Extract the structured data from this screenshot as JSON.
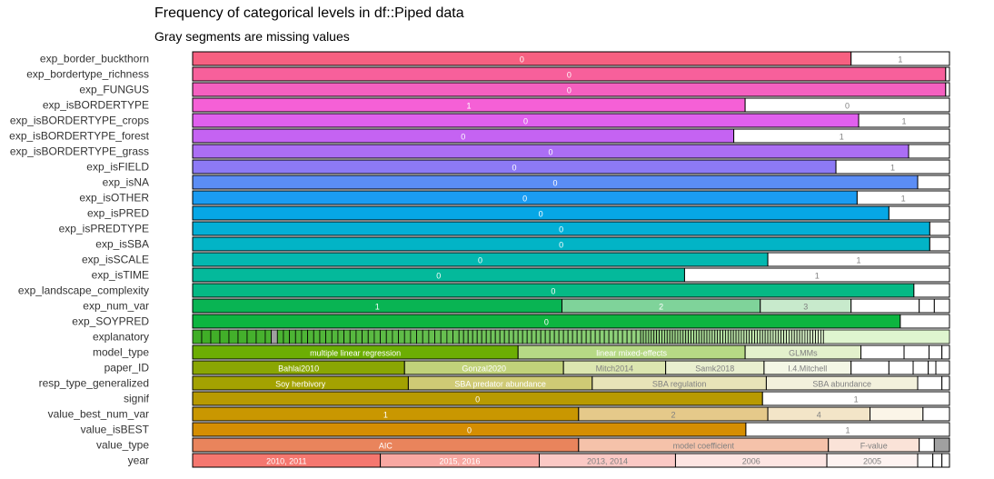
{
  "chart_data": {
    "type": "bar",
    "orientation": "horizontal-stacked-100",
    "title": "Frequency of categorical levels in df::Piped data",
    "subtitle": "Gray segments are missing values",
    "missing_color": "#a0a0a0",
    "rows": [
      {
        "name": "exp_border_buckthorn",
        "color": "#f76081",
        "segments": [
          {
            "label": "0",
            "value": 0.87
          },
          {
            "label": "1",
            "value": 0.13
          }
        ]
      },
      {
        "name": "exp_bordertype_richness",
        "color": "#f7609b",
        "segments": [
          {
            "label": "0",
            "value": 0.995
          },
          {
            "label": "",
            "value": 0.005
          }
        ]
      },
      {
        "name": "exp_FUNGUS",
        "color": "#f560c0",
        "segments": [
          {
            "label": "0",
            "value": 0.995
          },
          {
            "label": "",
            "value": 0.005
          }
        ]
      },
      {
        "name": "exp_isBORDERTYPE",
        "color": "#f560d6",
        "segments": [
          {
            "label": "1",
            "value": 0.73
          },
          {
            "label": "0",
            "value": 0.27
          }
        ]
      },
      {
        "name": "exp_isBORDERTYPE_crops",
        "color": "#e060ee",
        "segments": [
          {
            "label": "0",
            "value": 0.88
          },
          {
            "label": "1",
            "value": 0.12
          }
        ]
      },
      {
        "name": "exp_isBORDERTYPE_forest",
        "color": "#c563f2",
        "segments": [
          {
            "label": "0",
            "value": 0.715
          },
          {
            "label": "1",
            "value": 0.285
          }
        ]
      },
      {
        "name": "exp_isBORDERTYPE_grass",
        "color": "#ab6ef4",
        "segments": [
          {
            "label": "0",
            "value": 0.946
          },
          {
            "label": "",
            "value": 0.054
          }
        ]
      },
      {
        "name": "exp_isFIELD",
        "color": "#8d7af5",
        "segments": [
          {
            "label": "0",
            "value": 0.85
          },
          {
            "label": "1",
            "value": 0.15
          }
        ]
      },
      {
        "name": "exp_isNA",
        "color": "#5b8df5",
        "segments": [
          {
            "label": "0",
            "value": 0.958
          },
          {
            "label": "",
            "value": 0.042
          }
        ]
      },
      {
        "name": "exp_isOTHER",
        "color": "#1a9cf2",
        "segments": [
          {
            "label": "0",
            "value": 0.878
          },
          {
            "label": "1",
            "value": 0.122
          }
        ]
      },
      {
        "name": "exp_isPRED",
        "color": "#06a7e6",
        "segments": [
          {
            "label": "0",
            "value": 0.92
          },
          {
            "label": "",
            "value": 0.08
          }
        ]
      },
      {
        "name": "exp_isPREDTYPE",
        "color": "#03afd6",
        "segments": [
          {
            "label": "0",
            "value": 0.974
          },
          {
            "label": "",
            "value": 0.026
          }
        ]
      },
      {
        "name": "exp_isSBA",
        "color": "#02b4c6",
        "segments": [
          {
            "label": "0",
            "value": 0.974
          },
          {
            "label": "",
            "value": 0.026
          }
        ]
      },
      {
        "name": "exp_isSCALE",
        "color": "#03b8b0",
        "segments": [
          {
            "label": "0",
            "value": 0.76
          },
          {
            "label": "1",
            "value": 0.24
          }
        ]
      },
      {
        "name": "exp_isTIME",
        "color": "#04b99b",
        "segments": [
          {
            "label": "0",
            "value": 0.65
          },
          {
            "label": "1",
            "value": 0.35
          }
        ]
      },
      {
        "name": "exp_landscape_complexity",
        "color": "#05b985",
        "segments": [
          {
            "label": "0",
            "value": 0.953
          },
          {
            "label": "",
            "value": 0.047
          }
        ]
      },
      {
        "name": "exp_num_var",
        "colors": [
          "#09b453",
          "#7fd39a",
          "#c8eacc",
          "#ffffff",
          "#ffffff"
        ],
        "segments": [
          {
            "label": "1",
            "value": 0.488
          },
          {
            "label": "2",
            "value": 0.262
          },
          {
            "label": "3",
            "value": 0.12
          },
          {
            "label": "",
            "value": 0.09
          },
          {
            "label": "",
            "value": 0.02
          },
          {
            "label": "",
            "value": 0.02
          }
        ]
      },
      {
        "name": "exp_SOYPRED",
        "color": "#0db540",
        "segments": [
          {
            "label": "0",
            "value": 0.935
          },
          {
            "label": "",
            "value": 0.065
          }
        ]
      },
      {
        "name": "explanatory",
        "color": "#3fae26",
        "pattern": "many-small-levels",
        "segments": []
      },
      {
        "name": "model_type",
        "colors": [
          "#6cae03",
          "#b6d985",
          "#e3f1cc",
          "#ffffff",
          "#ffffff",
          "#ffffff"
        ],
        "segments": [
          {
            "label": "multiple linear regression",
            "value": 0.43
          },
          {
            "label": "linear mixed-effects",
            "value": 0.3
          },
          {
            "label": "GLMMs",
            "value": 0.153
          },
          {
            "label": "",
            "value": 0.057
          },
          {
            "label": "",
            "value": 0.033
          },
          {
            "label": "",
            "value": 0.017
          },
          {
            "label": "",
            "value": 0.01
          }
        ]
      },
      {
        "name": "paper_ID",
        "colors": [
          "#8aa603",
          "#c1d27a",
          "#dce6b0",
          "#e9efcf",
          "#f4f7e6",
          "#ffffff"
        ],
        "segments": [
          {
            "label": "Bahlai2010",
            "value": 0.28
          },
          {
            "label": "Gonzal2020",
            "value": 0.21
          },
          {
            "label": "Mitch2014",
            "value": 0.135
          },
          {
            "label": "Samk2018",
            "value": 0.13
          },
          {
            "label": "I.4.Mitchell",
            "value": 0.115
          },
          {
            "label": "",
            "value": 0.05
          },
          {
            "label": "",
            "value": 0.032
          },
          {
            "label": "",
            "value": 0.02
          },
          {
            "label": "",
            "value": 0.01
          },
          {
            "label": "",
            "value": 0.018
          }
        ]
      },
      {
        "name": "resp_type_generalized",
        "colors": [
          "#a3a201",
          "#cfca75",
          "#e8e4b8",
          "#f3f1dc",
          "#ffffff"
        ],
        "segments": [
          {
            "label": "Soy herbivory",
            "value": 0.285
          },
          {
            "label": "SBA predator abundance",
            "value": 0.243
          },
          {
            "label": "SBA regulation",
            "value": 0.23
          },
          {
            "label": "SBA abundance",
            "value": 0.2
          },
          {
            "label": "",
            "value": 0.032
          },
          {
            "label": "",
            "value": 0.01
          }
        ]
      },
      {
        "name": "signif",
        "color": "#b89a01",
        "segments": [
          {
            "label": "0",
            "value": 0.753
          },
          {
            "label": "1",
            "value": 0.247
          }
        ]
      },
      {
        "name": "value_best_num_var",
        "colors": [
          "#c99701",
          "#e5c98a",
          "#f3e5c8",
          "#fbf5e8",
          "#ffffff"
        ],
        "segments": [
          {
            "label": "1",
            "value": 0.51
          },
          {
            "label": "2",
            "value": 0.25
          },
          {
            "label": "4",
            "value": 0.135
          },
          {
            "label": "",
            "value": 0.07
          },
          {
            "label": "",
            "value": 0.035
          }
        ]
      },
      {
        "name": "value_isBEST",
        "color": "#d58e02",
        "segments": [
          {
            "label": "0",
            "value": 0.731
          },
          {
            "label": "1",
            "value": 0.269
          }
        ]
      },
      {
        "name": "value_type",
        "colors": [
          "#e9845c",
          "#f5c2aa",
          "#fae3d8",
          "#ffffff",
          "#a0a0a0"
        ],
        "segments": [
          {
            "label": "AIC",
            "value": 0.51
          },
          {
            "label": "model coefficient",
            "value": 0.33
          },
          {
            "label": "F-value",
            "value": 0.12
          },
          {
            "label": "",
            "value": 0.02
          },
          {
            "label": "",
            "value": 0.02
          }
        ]
      },
      {
        "name": "year",
        "colors": [
          "#f5776f",
          "#f8a8a2",
          "#fbc9c5",
          "#fde5e2",
          "#fef3f1",
          "#ffffff"
        ],
        "segments": [
          {
            "label": "2010, 2011",
            "value": 0.248
          },
          {
            "label": "2015, 2016",
            "value": 0.21
          },
          {
            "label": "2013, 2014",
            "value": 0.18
          },
          {
            "label": "2006",
            "value": 0.2
          },
          {
            "label": "2005",
            "value": 0.12
          },
          {
            "label": "",
            "value": 0.02
          },
          {
            "label": "",
            "value": 0.012
          },
          {
            "label": "",
            "value": 0.01
          }
        ]
      }
    ]
  }
}
